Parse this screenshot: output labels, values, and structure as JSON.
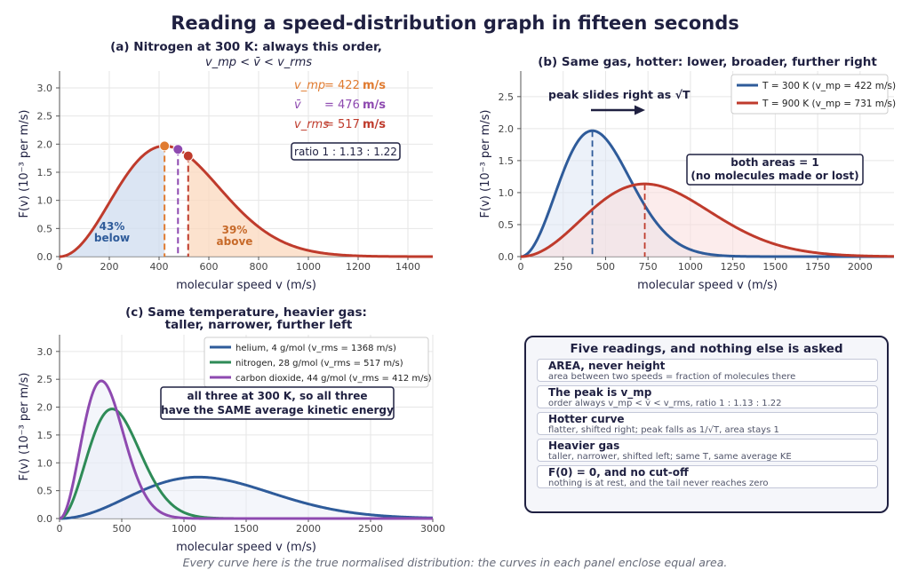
{
  "title": "Reading a speed-distribution graph in fifteen seconds",
  "footer": "Every curve here is the true normalised distribution: the curves in each panel enclose equal area.",
  "colors": {
    "navy": "#1f2041",
    "blue": "#2e5b9a",
    "red": "#bf3b2c",
    "orange": "#e07b30",
    "purple": "#8e4ab0",
    "green": "#2e8b57",
    "fill_blue": "#cfdcef",
    "fill_orange": "#fbd8bd",
    "grid": "#e6e6e6",
    "axis": "#555555"
  },
  "chart_data": [
    {
      "id": "a",
      "type": "line",
      "title_line1": "(a)  Nitrogen at 300 K: always this order,",
      "title_line2": "v_mp < v̄ < v_rms",
      "xlabel": "molecular speed v  (m/s)",
      "ylabel": "F(v)   (10⁻³ per m/s)",
      "xlim": [
        0,
        1500
      ],
      "ylim": [
        0,
        3.3
      ],
      "xticks": [
        0,
        200,
        400,
        600,
        800,
        1000,
        1200,
        1400
      ],
      "yticks": [
        0.0,
        0.5,
        1.0,
        1.5,
        2.0,
        2.5,
        3.0
      ],
      "series": [
        {
          "v_mp": 422,
          "color": "#bf3b2c"
        }
      ],
      "markers": [
        {
          "label": "v_mp",
          "value": 422,
          "unit": "m/s",
          "color": "#e07b30"
        },
        {
          "label": "v̄",
          "value": 476,
          "unit": "m/s",
          "color": "#8e4ab0"
        },
        {
          "label": "v_rms",
          "value": 517,
          "unit": "m/s",
          "color": "#bf3b2c"
        }
      ],
      "legend_lines": [
        {
          "sym": "v_mp",
          "eq": "= 422",
          "unit": "m/s",
          "color": "#e07b30"
        },
        {
          "sym": "v̄",
          "eq": "= 476",
          "unit": "m/s",
          "color": "#8e4ab0"
        },
        {
          "sym": "v_rms",
          "eq": "= 517",
          "unit": "m/s",
          "color": "#bf3b2c"
        }
      ],
      "ratio_box": "ratio  1 : 1.13 : 1.22",
      "below_pct": "43%",
      "below_word": "below",
      "above_pct": "39%",
      "above_word": "above"
    },
    {
      "id": "b",
      "type": "line",
      "title": "(b)  Same gas, hotter: lower, broader, further right",
      "xlabel": "molecular speed v  (m/s)",
      "ylabel": "F(v)   (10⁻³ per m/s)",
      "xlim": [
        0,
        2200
      ],
      "ylim": [
        0,
        2.9
      ],
      "xticks": [
        0,
        250,
        500,
        750,
        1000,
        1250,
        1500,
        1750,
        2000
      ],
      "yticks": [
        0.0,
        0.5,
        1.0,
        1.5,
        2.0,
        2.5
      ],
      "series": [
        {
          "name": "T = 300 K  (v_mp = 422 m/s)",
          "v_mp": 422,
          "color": "#2e5b9a"
        },
        {
          "name": "T = 900 K  (v_mp = 731 m/s)",
          "v_mp": 731,
          "color": "#bf3b2c"
        }
      ],
      "legend_placement": "top-right",
      "annotation_arrow": "peak slides right as √T",
      "annotation_box_line1": "both areas  = 1",
      "annotation_box_line2": "(no molecules made or lost)"
    },
    {
      "id": "c",
      "type": "line",
      "title_line1": "(c)  Same temperature, heavier gas:",
      "title_line2": "taller, narrower, further left",
      "xlabel": "molecular speed v  (m/s)",
      "ylabel": "F(v)   (10⁻³ per m/s)",
      "xlim": [
        0,
        3000
      ],
      "ylim": [
        0,
        3.3
      ],
      "xticks": [
        0,
        500,
        1000,
        1500,
        2000,
        2500,
        3000
      ],
      "yticks": [
        0.0,
        0.5,
        1.0,
        1.5,
        2.0,
        2.5,
        3.0
      ],
      "series": [
        {
          "name": "helium, 4 g/mol  (v_rms = 1368 m/s)",
          "v_mp": 1116,
          "color": "#2e5b9a"
        },
        {
          "name": "nitrogen, 28 g/mol  (v_rms = 517 m/s)",
          "v_mp": 422,
          "color": "#2e8b57"
        },
        {
          "name": "carbon dioxide, 44 g/mol  (v_rms = 412 m/s)",
          "v_mp": 336,
          "color": "#8e4ab0"
        }
      ],
      "legend_placement": "top-right",
      "annotation_box_line1": "all three at 300 K, so all three",
      "annotation_box_line2": "have the SAME average kinetic energy"
    }
  ],
  "summary": {
    "title": "Five readings, and nothing else is asked",
    "items": [
      {
        "heading": "AREA, never height",
        "detail": "area between two speeds = fraction of molecules there"
      },
      {
        "heading": "The peak is v_mp",
        "detail": "order always v_mp < v̄ < v_rms, ratio 1 : 1.13 : 1.22"
      },
      {
        "heading": "Hotter curve",
        "detail": "flatter, shifted right; peak falls as 1/√T, area stays 1"
      },
      {
        "heading": "Heavier gas",
        "detail": "taller, narrower, shifted left; same T, same average KE"
      },
      {
        "heading": "F(0) = 0, and no cut-off",
        "detail": "nothing is at rest, and the tail never reaches zero"
      }
    ]
  }
}
